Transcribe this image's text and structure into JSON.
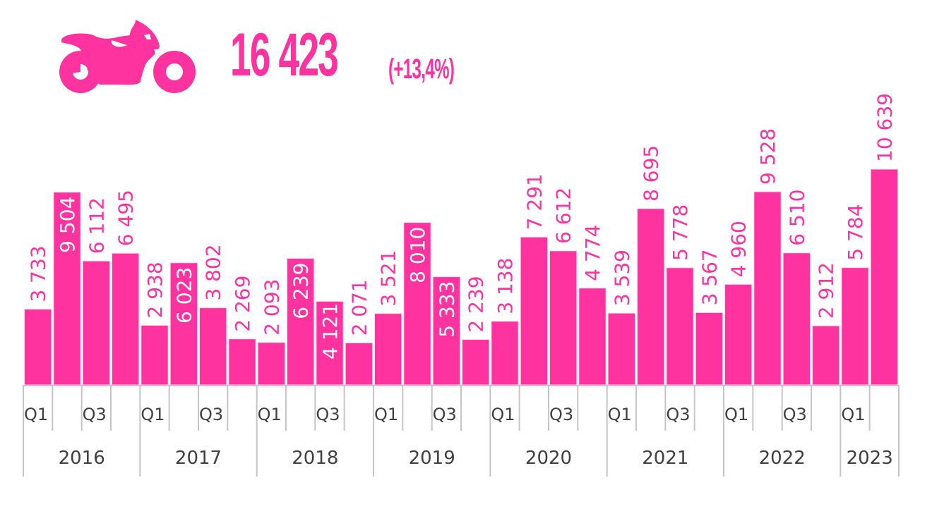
{
  "header": {
    "icon": "motorcycle-icon",
    "value": "16 423",
    "change": "(+13,4%)"
  },
  "colors": {
    "accent": "#ff33a0",
    "label_inside": "#ffffff",
    "axis_text": "#404040",
    "axis_line": "#c6c6c6"
  },
  "chart_data": {
    "type": "bar",
    "title": "",
    "xlabel": "",
    "ylabel": "",
    "ylim": [
      0,
      10639
    ],
    "grid": false,
    "legend": "none",
    "categories": [
      "2016 Q1",
      "2016 Q2",
      "2016 Q3",
      "2016 Q4",
      "2017 Q1",
      "2017 Q2",
      "2017 Q3",
      "2017 Q4",
      "2018 Q1",
      "2018 Q2",
      "2018 Q3",
      "2018 Q4",
      "2019 Q1",
      "2019 Q2",
      "2019 Q3",
      "2019 Q4",
      "2020 Q1",
      "2020 Q2",
      "2020 Q3",
      "2020 Q4",
      "2021 Q1",
      "2021 Q2",
      "2021 Q3",
      "2021 Q4",
      "2022 Q1",
      "2022 Q2",
      "2022 Q3",
      "2022 Q4",
      "2023 Q1",
      "2023 Q2"
    ],
    "values": [
      3733,
      9504,
      6112,
      6495,
      2938,
      6023,
      3802,
      2269,
      2093,
      6239,
      4121,
      2071,
      3521,
      8010,
      5333,
      2239,
      3138,
      7291,
      6612,
      4774,
      3539,
      8695,
      5778,
      3567,
      4960,
      9528,
      6510,
      2912,
      5784,
      10639
    ],
    "data_labels": [
      "3 733",
      "9 504",
      "6 112",
      "6 495",
      "2 938",
      "6 023",
      "3 802",
      "2 269",
      "2 093",
      "6 239",
      "4 121",
      "2 071",
      "3 521",
      "8 010",
      "5 333",
      "2 239",
      "3 138",
      "7 291",
      "6 612",
      "4 774",
      "3 539",
      "8 695",
      "5 778",
      "3 567",
      "4 960",
      "9 528",
      "6 510",
      "2 912",
      "5 784",
      "10 639"
    ],
    "label_inside": [
      false,
      true,
      false,
      false,
      false,
      true,
      false,
      false,
      false,
      true,
      true,
      false,
      false,
      true,
      true,
      false,
      false,
      false,
      false,
      false,
      false,
      false,
      false,
      false,
      false,
      false,
      false,
      false,
      false,
      false
    ],
    "quarter_ticks": [
      "Q1",
      "",
      "Q3",
      ""
    ],
    "years": [
      "2016",
      "2017",
      "2018",
      "2019",
      "2020",
      "2021",
      "2022",
      "2023"
    ],
    "quarters_per_year": [
      4,
      4,
      4,
      4,
      4,
      4,
      4,
      2
    ]
  }
}
